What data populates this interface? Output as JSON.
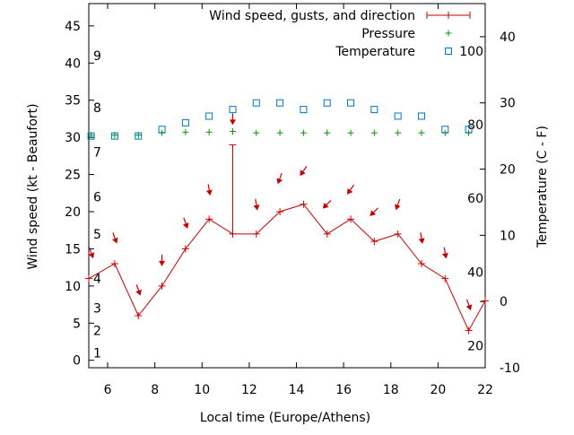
{
  "chart_data": {
    "type": "line",
    "xlabel": "Local time (Europe/Athens)",
    "ylabel": "Wind speed (kt - Beaufort)",
    "y2label": "Temperature (C - F)",
    "xlim": [
      5.2,
      22
    ],
    "ylim": [
      -1,
      48
    ],
    "y2lim": [
      -10,
      45
    ],
    "x_ticks": [
      6,
      8,
      10,
      12,
      14,
      16,
      18,
      20,
      22
    ],
    "y_ticks": [
      0,
      5,
      10,
      15,
      20,
      25,
      30,
      35,
      40,
      45
    ],
    "y2_ticks": [
      -10,
      0,
      10,
      20,
      30,
      40
    ],
    "beaufort_labels": [
      {
        "value": "1",
        "kt": 1
      },
      {
        "value": "2",
        "kt": 4
      },
      {
        "value": "3",
        "kt": 7
      },
      {
        "value": "4",
        "kt": 11
      },
      {
        "value": "5",
        "kt": 17
      },
      {
        "value": "6",
        "kt": 22
      },
      {
        "value": "7",
        "kt": 28
      },
      {
        "value": "8",
        "kt": 34
      },
      {
        "value": "9",
        "kt": 41
      }
    ],
    "fahrenheit_labels": [
      {
        "value": "20",
        "c": -6.7
      },
      {
        "value": "40",
        "c": 4.4
      },
      {
        "value": "60",
        "c": 15.6
      },
      {
        "value": "80",
        "c": 26.7
      },
      {
        "value": "100",
        "c": 37.8
      }
    ],
    "legend_position": "top-right",
    "series": [
      {
        "name": "Wind speed, gusts, and direction",
        "color": "#cc0000",
        "x": [
          5.2,
          6.3,
          7.3,
          8.3,
          9.3,
          10.3,
          11.3,
          12.3,
          13.3,
          14.3,
          15.3,
          16.3,
          17.3,
          18.3,
          19.3,
          20.3,
          21.3,
          22
        ],
        "values": [
          11,
          13,
          6,
          10,
          15,
          19,
          17,
          17,
          20,
          21,
          17,
          19,
          16,
          17,
          13,
          11,
          4,
          8
        ],
        "gusts": [
          null,
          null,
          null,
          null,
          null,
          null,
          29,
          null,
          null,
          null,
          null,
          null,
          null,
          null,
          null,
          null,
          null,
          null
        ],
        "direction_arrows": [
          {
            "x": 5.3,
            "y": 14.5,
            "angle": -20
          },
          {
            "x": 6.3,
            "y": 16.5,
            "angle": -20
          },
          {
            "x": 7.3,
            "y": 9.5,
            "angle": -20
          },
          {
            "x": 8.3,
            "y": 13.5,
            "angle": 0
          },
          {
            "x": 9.3,
            "y": 18.5,
            "angle": -20
          },
          {
            "x": 10.3,
            "y": 23.0,
            "angle": -10
          },
          {
            "x": 11.3,
            "y": 32.5,
            "angle": 0
          },
          {
            "x": 12.3,
            "y": 21.0,
            "angle": -10
          },
          {
            "x": 13.3,
            "y": 24.5,
            "angle": 20
          },
          {
            "x": 14.3,
            "y": 25.5,
            "angle": 35
          },
          {
            "x": 15.3,
            "y": 21.0,
            "angle": 45
          },
          {
            "x": 16.3,
            "y": 23.0,
            "angle": 35
          },
          {
            "x": 17.3,
            "y": 20.0,
            "angle": 45
          },
          {
            "x": 18.3,
            "y": 21.0,
            "angle": 20
          },
          {
            "x": 19.3,
            "y": 16.5,
            "angle": -10
          },
          {
            "x": 20.3,
            "y": 14.5,
            "angle": -10
          },
          {
            "x": 21.3,
            "y": 7.5,
            "angle": -20
          }
        ]
      },
      {
        "name": "Pressure",
        "color": "#009900",
        "x": [
          5.3,
          6.3,
          7.3,
          8.3,
          9.3,
          10.3,
          11.3,
          12.3,
          13.3,
          14.3,
          15.3,
          16.3,
          17.3,
          18.3,
          19.3,
          20.3,
          21.3
        ],
        "values": [
          30.3,
          30.3,
          30.3,
          30.6,
          30.7,
          30.7,
          30.8,
          30.6,
          30.6,
          30.6,
          30.6,
          30.6,
          30.6,
          30.6,
          30.6,
          30.6,
          30.6
        ]
      },
      {
        "name": "Temperature",
        "color": "#0077bb",
        "x": [
          5.3,
          6.3,
          7.3,
          8.3,
          9.3,
          10.3,
          11.3,
          12.3,
          13.3,
          14.3,
          15.3,
          16.3,
          17.3,
          18.3,
          19.3,
          20.3,
          21.3
        ],
        "values": [
          25,
          25,
          25,
          26,
          27,
          28,
          29,
          30,
          30,
          29,
          30,
          30,
          29,
          28,
          28,
          26,
          26
        ]
      }
    ]
  }
}
